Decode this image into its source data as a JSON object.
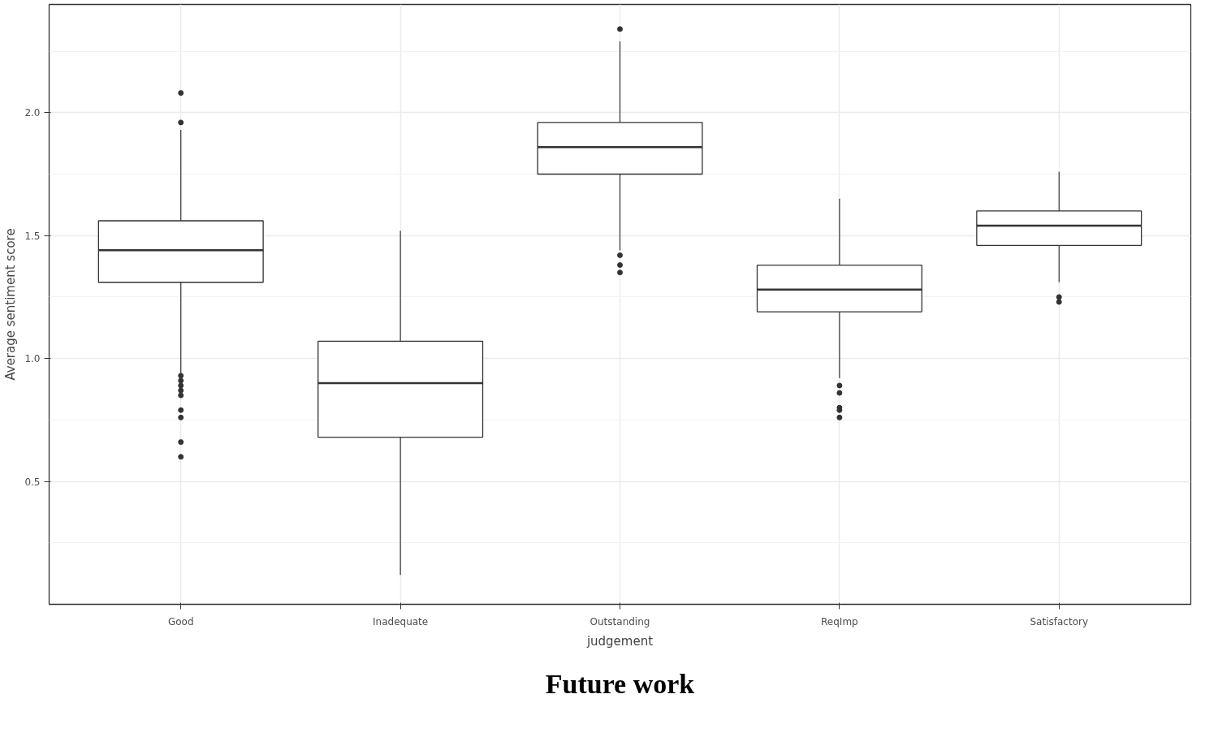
{
  "chart_data": {
    "type": "box",
    "title": "Future work",
    "xlabel": "judgement",
    "ylabel": "Average sentiment score",
    "categories": [
      "Good",
      "Inadequate",
      "Outstanding",
      "ReqImp",
      "Satisfactory"
    ],
    "boxes": [
      {
        "low": 0.94,
        "q1": 1.31,
        "median": 1.44,
        "q3": 1.56,
        "high": 1.93,
        "outliers": [
          2.08,
          1.96,
          0.93,
          0.91,
          0.89,
          0.87,
          0.85,
          0.79,
          0.76,
          0.66,
          0.6
        ]
      },
      {
        "low": 0.12,
        "q1": 0.68,
        "median": 0.9,
        "q3": 1.07,
        "high": 1.52
      },
      {
        "low": 1.44,
        "q1": 1.75,
        "median": 1.86,
        "q3": 1.96,
        "high": 2.29,
        "outliers": [
          2.34,
          1.42,
          1.38,
          1.35
        ]
      },
      {
        "low": 0.92,
        "q1": 1.19,
        "median": 1.28,
        "q3": 1.38,
        "high": 1.65,
        "outliers": [
          0.89,
          0.86,
          0.8,
          0.79,
          0.76
        ]
      },
      {
        "low": 1.31,
        "q1": 1.46,
        "median": 1.54,
        "q3": 1.6,
        "high": 1.76,
        "outliers": [
          1.25,
          1.23
        ]
      }
    ],
    "color": "#333333",
    "ylim": [
      0.0,
      2.44
    ],
    "yticks": [
      {
        "value": 0.5,
        "label": "0.5"
      },
      {
        "value": 1.0,
        "label": "1.0"
      },
      {
        "value": 1.5,
        "label": "1.5"
      },
      {
        "value": 2.0,
        "label": "2.0"
      }
    ],
    "grid": true,
    "marker": "circle"
  }
}
